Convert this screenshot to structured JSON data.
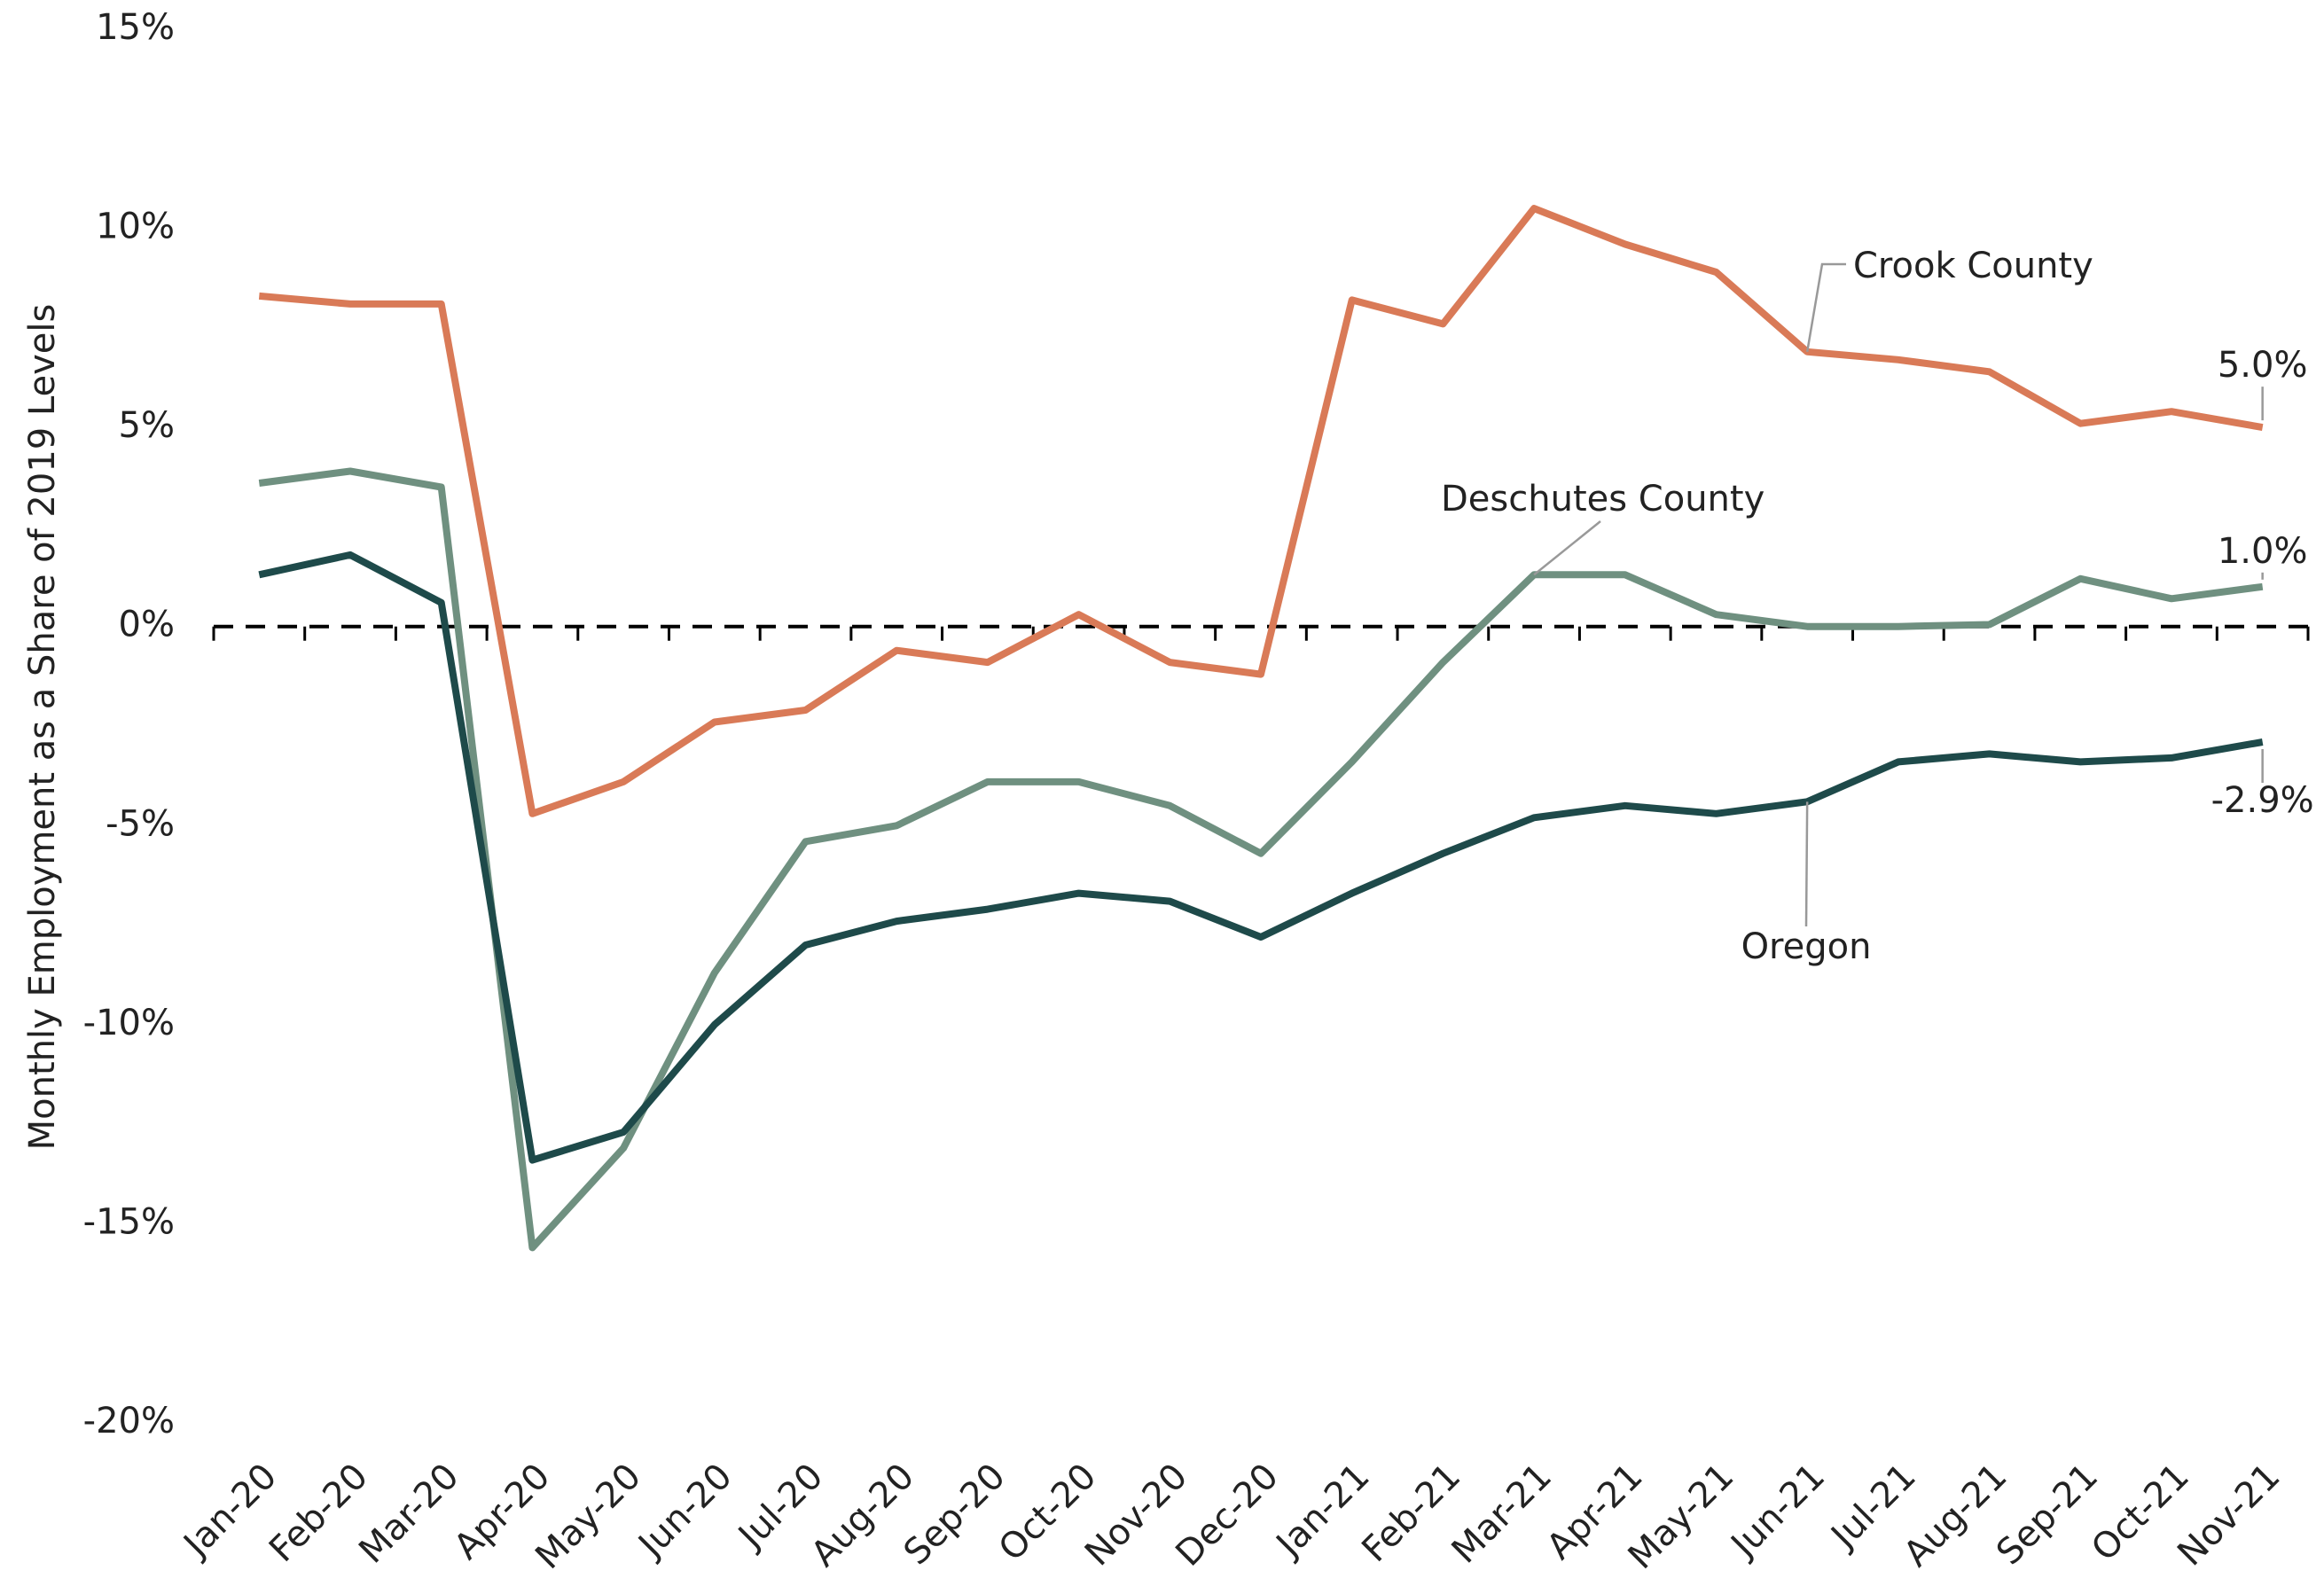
{
  "chart_data": {
    "type": "line",
    "y_label": "Monthly Employment as a Share of 2019 Levels",
    "categories": [
      "Jan-20",
      "Feb-20",
      "Mar-20",
      "Apr-20",
      "May-20",
      "Jun-20",
      "Jul-20",
      "Aug-20",
      "Sep-20",
      "Oct-20",
      "Nov-20",
      "Dec-20",
      "Jan-21",
      "Feb-21",
      "Mar-21",
      "Apr-21",
      "May-21",
      "Jun-21",
      "Jul-21",
      "Aug-21",
      "Sep-21",
      "Oct-21",
      "Nov-21"
    ],
    "series": [
      {
        "name": "Crook County",
        "color": "#d97a57",
        "values": [
          8.3,
          8.1,
          8.1,
          -4.7,
          -3.9,
          -2.4,
          -2.1,
          -0.6,
          -0.9,
          0.3,
          -0.9,
          -1.2,
          8.2,
          7.6,
          10.5,
          9.6,
          8.9,
          6.9,
          6.7,
          6.4,
          5.1,
          5.4,
          5.0
        ],
        "value_labels": [
          null,
          null,
          null,
          null,
          null,
          null,
          null,
          null,
          null,
          null,
          null,
          null,
          null,
          null,
          null,
          null,
          null,
          null,
          null,
          null,
          null,
          null,
          "5.0%"
        ]
      },
      {
        "name": "Deschutes County",
        "color": "#6f9080",
        "values": [
          3.6,
          3.9,
          3.5,
          -15.6,
          -13.1,
          -8.7,
          -5.4,
          -5.0,
          -3.9,
          -3.9,
          -4.5,
          -5.7,
          -3.4,
          -0.9,
          1.3,
          1.3,
          0.3,
          0.0,
          0.0,
          0.05,
          1.2,
          0.7,
          1.0
        ],
        "value_labels": [
          null,
          null,
          null,
          null,
          null,
          null,
          null,
          null,
          null,
          null,
          null,
          null,
          null,
          null,
          null,
          null,
          null,
          null,
          null,
          null,
          null,
          null,
          "1.0%"
        ]
      },
      {
        "name": "Oregon",
        "color": "#1e4a4a",
        "values": [
          1.3,
          1.8,
          0.6,
          -13.4,
          -12.7,
          -10.0,
          -8.0,
          -7.4,
          -7.1,
          -6.7,
          -6.9,
          -7.8,
          -6.7,
          -5.7,
          -4.8,
          -4.5,
          -4.7,
          -4.4,
          -3.4,
          -3.2,
          -3.4,
          -3.3,
          -2.9
        ],
        "value_labels": [
          null,
          null,
          null,
          null,
          null,
          null,
          null,
          null,
          null,
          null,
          null,
          null,
          null,
          null,
          null,
          null,
          null,
          null,
          null,
          null,
          null,
          null,
          "-2.9%"
        ]
      }
    ],
    "ylim": [
      -20,
      15
    ],
    "yticks": [
      {
        "value": -20,
        "label": "-20%"
      },
      {
        "value": -15,
        "label": "-15%"
      },
      {
        "value": -10,
        "label": "-10%"
      },
      {
        "value": -5,
        "label": "-5%"
      },
      {
        "value": 0,
        "label": "0%"
      },
      {
        "value": 5,
        "label": "5%"
      },
      {
        "value": 10,
        "label": "10%"
      },
      {
        "value": 15,
        "label": "15%"
      }
    ],
    "reference_line": {
      "value": 0,
      "style": "dashed"
    },
    "grid": false
  }
}
